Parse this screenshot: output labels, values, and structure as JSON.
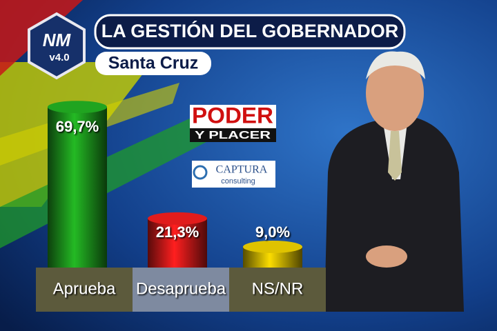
{
  "chart_data": {
    "type": "bar",
    "title": "LA GESTIÓN DEL GOBERNADOR",
    "subtitle": "Santa Cruz",
    "categories": [
      "Aprueba",
      "Desaprueba",
      "NS/NR"
    ],
    "values": [
      69.7,
      21.3,
      9.0
    ],
    "value_labels": [
      "69,7%",
      "21,3%",
      "9,0%"
    ],
    "colors": [
      "#1c8f1c",
      "#c41818",
      "#c2aa00"
    ]
  },
  "branding": {
    "logo_main": "NM",
    "logo_version": "v4.0",
    "sponsor_top": "PODER",
    "sponsor_bottom": "Y PLACER",
    "pollster": "CAPTURA",
    "pollster_sub": "consulting"
  }
}
